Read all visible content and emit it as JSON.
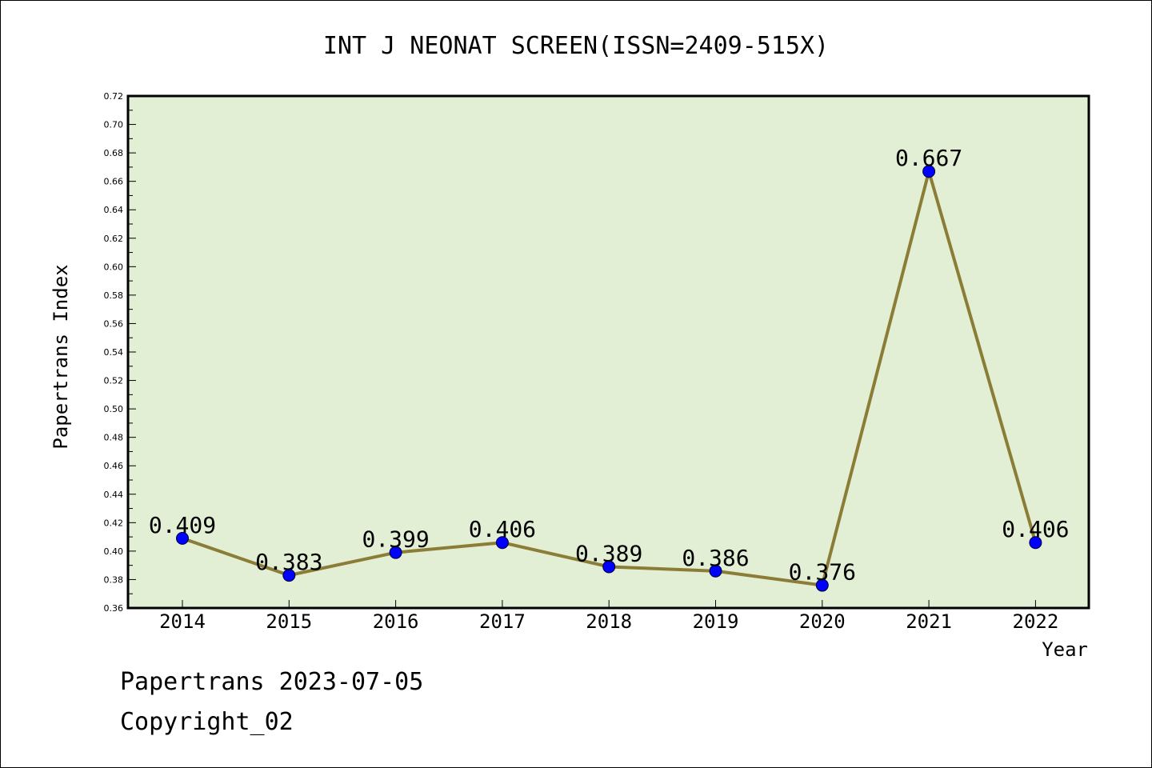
{
  "chart_data": {
    "type": "line",
    "title": "INT J NEONAT SCREEN(ISSN=2409-515X)",
    "xlabel": "Year",
    "ylabel": "Papertrans Index",
    "categories": [
      "2014",
      "2015",
      "2016",
      "2017",
      "2018",
      "2019",
      "2020",
      "2021",
      "2022"
    ],
    "values": [
      0.409,
      0.383,
      0.399,
      0.406,
      0.389,
      0.386,
      0.376,
      0.667,
      0.406
    ],
    "data_labels": [
      "0.409",
      "0.383",
      "0.399",
      "0.406",
      "0.389",
      "0.386",
      "0.376",
      "0.667",
      "0.406"
    ],
    "ylim": [
      0.36,
      0.72
    ],
    "yticks": [
      "0.36",
      "0.38",
      "0.40",
      "0.42",
      "0.44",
      "0.46",
      "0.48",
      "0.50",
      "0.52",
      "0.54",
      "0.56",
      "0.58",
      "0.60",
      "0.62",
      "0.64",
      "0.66",
      "0.68",
      "0.70",
      "0.72"
    ],
    "grid": false,
    "legend": "none",
    "colors": {
      "plot_background": "#e2efd5",
      "line": "#8b7d36",
      "marker": "#0000ff"
    }
  },
  "footer": {
    "line1": "Papertrans 2023-07-05",
    "line2": "Copyright_02"
  }
}
